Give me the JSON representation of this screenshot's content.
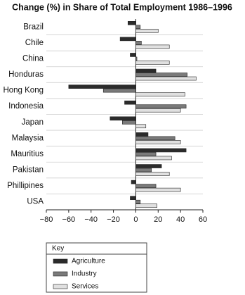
{
  "chart_data": {
    "type": "hbar",
    "title": "Change (%) in Share of Total Employment 1986–1996",
    "categories": [
      "Brazil",
      "Chile",
      "China",
      "Honduras",
      "Hong Kong",
      "Indonesia",
      "Japan",
      "Malaysia",
      "Mauritius",
      "Pakistan",
      "Phillipines",
      "USA"
    ],
    "series": [
      {
        "name": "Agriculture",
        "color": "#2b2b2b",
        "values": [
          -7,
          -14,
          -5,
          18,
          -60,
          -10,
          -23,
          11,
          45,
          23,
          -4,
          -5
        ]
      },
      {
        "name": "Industry",
        "color": "#7a7a7a",
        "values": [
          4,
          5,
          1,
          46,
          -29,
          45,
          -12,
          35,
          18,
          14,
          18,
          4
        ]
      },
      {
        "name": "Services",
        "color": "#e0e0e0",
        "values": [
          20,
          30,
          30,
          54,
          44,
          40,
          9,
          40,
          32,
          30,
          40,
          19
        ]
      }
    ],
    "xlim": [
      -80,
      60
    ],
    "xticks": [
      {
        "value": -80,
        "label": "−80"
      },
      {
        "value": -60,
        "label": "−60"
      },
      {
        "value": -40,
        "label": "−40"
      },
      {
        "value": -20,
        "label": "−20"
      },
      0,
      20,
      40,
      60
    ],
    "legend": "bottom-left",
    "legend_title": "Key"
  }
}
